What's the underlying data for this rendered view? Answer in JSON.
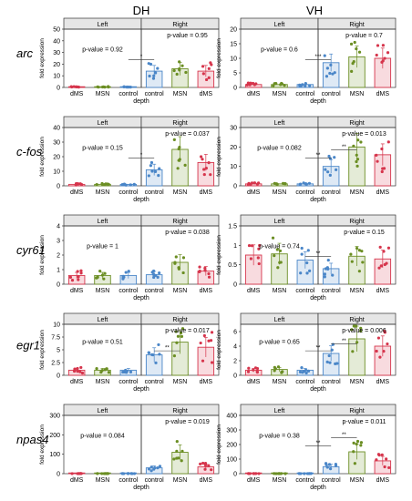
{
  "columns": [
    "DH",
    "VH"
  ],
  "rows": [
    "arc",
    "c-fos",
    "cyr61",
    "egr1",
    "npas4"
  ],
  "strip_left": "Left",
  "strip_right": "Right",
  "y_label": "fold expression",
  "x_label": "depth",
  "chart_data": [
    {
      "type": "bar",
      "gene": "arc",
      "region": "DH",
      "categories": [
        "dMS",
        "MSN",
        "control",
        "control",
        "MSN",
        "dMS"
      ],
      "values": [
        0.5,
        0.5,
        0.4,
        14,
        16,
        14
      ],
      "ylim": [
        0,
        50
      ],
      "yticks": [
        0,
        10,
        20,
        30,
        40,
        50
      ],
      "pvalue_left": "p-value = 0.92",
      "pvalue_right": "p-value = 0.95",
      "sig": [
        {
          "a": 2,
          "b": 3,
          "label": "*"
        }
      ]
    },
    {
      "type": "bar",
      "gene": "arc",
      "region": "VH",
      "categories": [
        "dMS",
        "MSN",
        "control",
        "control",
        "MSN",
        "dMS"
      ],
      "values": [
        1,
        1,
        1,
        8.5,
        10.5,
        10
      ],
      "ylim": [
        0,
        20
      ],
      "yticks": [
        0,
        5,
        10,
        15,
        20
      ],
      "pvalue_left": "p-value = 0.6",
      "pvalue_right": "p-value = 0.7",
      "sig": [
        {
          "a": 2,
          "b": 3,
          "label": "***"
        }
      ]
    },
    {
      "type": "bar",
      "gene": "c-fos",
      "region": "DH",
      "categories": [
        "dMS",
        "MSN",
        "control",
        "control",
        "MSN",
        "dMS"
      ],
      "values": [
        1,
        1,
        1,
        11,
        25,
        16
      ],
      "ylim": [
        0,
        40
      ],
      "yticks": [
        0,
        10,
        20,
        30,
        40
      ],
      "pvalue_left": "p-value = 0.15",
      "pvalue_right": "p-value = 0.037",
      "sig": [
        {
          "a": 2,
          "b": 3,
          "label": "*"
        }
      ]
    },
    {
      "type": "bar",
      "gene": "c-fos",
      "region": "VH",
      "categories": [
        "dMS",
        "MSN",
        "control",
        "control",
        "MSN",
        "dMS"
      ],
      "values": [
        1,
        1,
        1,
        10,
        20,
        16
      ],
      "ylim": [
        0,
        30
      ],
      "yticks": [
        0,
        10,
        20,
        30
      ],
      "pvalue_left": "p-value = 0.082",
      "pvalue_right": "p-value = 0.013",
      "sig": [
        {
          "a": 2,
          "b": 3,
          "label": "**"
        },
        {
          "a": 3,
          "b": 4,
          "label": "**"
        }
      ]
    },
    {
      "type": "bar",
      "gene": "cyr61",
      "region": "DH",
      "categories": [
        "dMS",
        "MSN",
        "control",
        "control",
        "MSN",
        "dMS"
      ],
      "values": [
        0.6,
        0.6,
        0.6,
        0.65,
        1.5,
        0.9
      ],
      "ylim": [
        0,
        4
      ],
      "yticks": [
        0,
        1,
        2,
        3,
        4
      ],
      "pvalue_left": "p-value = 1",
      "pvalue_right": "p-value = 0.038",
      "sig": []
    },
    {
      "type": "bar",
      "gene": "cyr61",
      "region": "VH",
      "categories": [
        "dMS",
        "MSN",
        "control",
        "control",
        "MSN",
        "dMS"
      ],
      "values": [
        0.75,
        0.78,
        0.62,
        0.4,
        0.72,
        0.65
      ],
      "ylim": [
        0,
        1.5
      ],
      "yticks": [
        0,
        0.5,
        1,
        1.5
      ],
      "pvalue_left": "p-value = 0.74",
      "pvalue_right": "p-value = 0.15",
      "sig": [
        {
          "a": 2,
          "b": 3,
          "label": "**"
        }
      ]
    },
    {
      "type": "bar",
      "gene": "egr1",
      "region": "DH",
      "categories": [
        "dMS",
        "MSN",
        "control",
        "control",
        "MSN",
        "dMS"
      ],
      "values": [
        1,
        1,
        1,
        4,
        6.5,
        5.5
      ],
      "ylim": [
        0,
        10
      ],
      "yticks": [
        0,
        2.5,
        5,
        7.5,
        10
      ],
      "pvalue_left": "p-value = 0.51",
      "pvalue_right": "p-value = 0.017",
      "sig": [
        {
          "a": 3,
          "b": 4,
          "label": "**"
        }
      ]
    },
    {
      "type": "bar",
      "gene": "egr1",
      "region": "VH",
      "categories": [
        "dMS",
        "MSN",
        "control",
        "control",
        "MSN",
        "dMS"
      ],
      "values": [
        0.7,
        0.8,
        0.7,
        3,
        5,
        4
      ],
      "ylim": [
        0,
        7
      ],
      "yticks": [
        0,
        2,
        4,
        6
      ],
      "pvalue_left": "p-value = 0.65",
      "pvalue_right": "p-value = 0.006",
      "sig": [
        {
          "a": 2,
          "b": 3,
          "label": "**"
        },
        {
          "a": 3,
          "b": 4,
          "label": "**"
        }
      ]
    },
    {
      "type": "bar",
      "gene": "npas4",
      "region": "DH",
      "categories": [
        "dMS",
        "MSN",
        "control",
        "control",
        "MSN",
        "dMS"
      ],
      "values": [
        0.5,
        0.5,
        0.5,
        30,
        110,
        35
      ],
      "ylim": [
        0,
        300
      ],
      "yticks": [
        0,
        100,
        200,
        300
      ],
      "pvalue_left": "p-value = 0.084",
      "pvalue_right": "p-value = 0.019",
      "sig": []
    },
    {
      "type": "bar",
      "gene": "npas4",
      "region": "VH",
      "categories": [
        "dMS",
        "MSN",
        "control",
        "control",
        "MSN",
        "dMS"
      ],
      "values": [
        0.5,
        0.5,
        0.5,
        48,
        150,
        88
      ],
      "ylim": [
        0,
        400
      ],
      "yticks": [
        0,
        100,
        200,
        300,
        400
      ],
      "pvalue_left": "p-value = 0.38",
      "pvalue_right": "p-value = 0.011",
      "sig": [
        {
          "a": 2,
          "b": 3,
          "label": "**"
        },
        {
          "a": 3,
          "b": 4,
          "label": "**"
        }
      ]
    }
  ],
  "colors": {
    "dMS": "#d6354c",
    "MSN": "#6b8e23",
    "control": "#4a86c8",
    "strip_fill": "#e6e6e6",
    "strip_border": "#333333",
    "axis": "#333333"
  }
}
